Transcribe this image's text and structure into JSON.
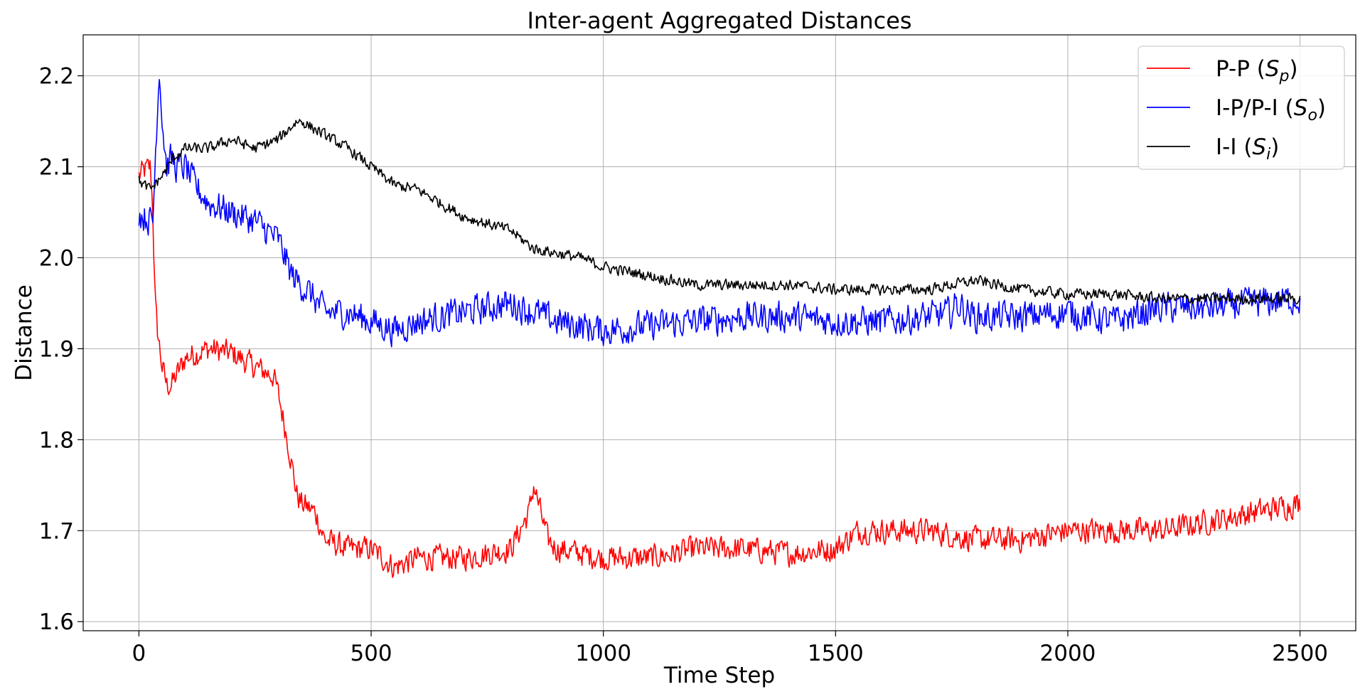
{
  "chart_data": {
    "type": "line",
    "title": "Inter-agent Aggregated Distances",
    "xlabel": "Time Step",
    "ylabel": "Distance",
    "xlim": [
      -120,
      2620
    ],
    "ylim": [
      1.59,
      2.245
    ],
    "xticks": [
      0,
      500,
      1000,
      1500,
      2000,
      2500
    ],
    "yticks": [
      1.6,
      1.7,
      1.8,
      1.9,
      2.0,
      2.1,
      2.2
    ],
    "ytick_labels": [
      "1.6",
      "1.7",
      "1.8",
      "1.9",
      "2.0",
      "2.1",
      "2.2"
    ],
    "grid": true,
    "legend_position": "top-right",
    "series": [
      {
        "name": "P-P (Sp)",
        "label_main": "P-P (",
        "label_var": "S",
        "label_sub": "p",
        "label_end": ")",
        "color": "#ff0000",
        "noise": 0.018,
        "x": [
          0,
          10,
          25,
          30,
          35,
          40,
          50,
          60,
          70,
          80,
          100,
          150,
          200,
          250,
          290,
          300,
          320,
          340,
          350,
          380,
          400,
          450,
          500,
          550,
          600,
          700,
          800,
          840,
          850,
          880,
          900,
          1000,
          1100,
          1200,
          1300,
          1400,
          1500,
          1550,
          1600,
          1700,
          1800,
          1900,
          2000,
          2100,
          2200,
          2300,
          2400,
          2500
        ],
        "y": [
          2.09,
          2.095,
          2.1,
          2.05,
          1.95,
          1.92,
          1.88,
          1.86,
          1.86,
          1.87,
          1.89,
          1.9,
          1.895,
          1.88,
          1.87,
          1.85,
          1.8,
          1.74,
          1.73,
          1.72,
          1.69,
          1.68,
          1.68,
          1.66,
          1.67,
          1.67,
          1.68,
          1.72,
          1.75,
          1.69,
          1.68,
          1.67,
          1.67,
          1.68,
          1.68,
          1.675,
          1.68,
          1.7,
          1.7,
          1.7,
          1.69,
          1.69,
          1.7,
          1.7,
          1.7,
          1.71,
          1.72,
          1.73
        ]
      },
      {
        "name": "I-P/P-I (So)",
        "label_main": "I-P/P-I (",
        "label_var": "S",
        "label_sub": "o",
        "label_end": ")",
        "color": "#0000ff",
        "noise": 0.022,
        "x": [
          0,
          10,
          30,
          40,
          45,
          50,
          60,
          70,
          80,
          90,
          100,
          120,
          150,
          200,
          250,
          300,
          330,
          370,
          400,
          450,
          500,
          550,
          600,
          700,
          800,
          900,
          1000,
          1100,
          1200,
          1300,
          1400,
          1500,
          1600,
          1700,
          1750,
          1760,
          1800,
          1900,
          2000,
          2100,
          2200,
          2300,
          2400,
          2500
        ],
        "y": [
          2.05,
          2.045,
          2.04,
          2.17,
          2.21,
          2.15,
          2.1,
          2.11,
          2.1,
          2.1,
          2.1,
          2.08,
          2.06,
          2.05,
          2.04,
          2.02,
          1.98,
          1.96,
          1.94,
          1.94,
          1.93,
          1.92,
          1.93,
          1.94,
          1.95,
          1.93,
          1.92,
          1.925,
          1.93,
          1.935,
          1.935,
          1.93,
          1.93,
          1.935,
          1.94,
          1.95,
          1.935,
          1.935,
          1.94,
          1.93,
          1.945,
          1.945,
          1.95,
          1.955
        ]
      },
      {
        "name": "I-I (Si)",
        "label_main": "I-I (",
        "label_var": "S",
        "label_sub": "i",
        "label_end": ")",
        "color": "#000000",
        "noise": 0.008,
        "x": [
          0,
          10,
          25,
          50,
          75,
          100,
          150,
          200,
          250,
          300,
          340,
          350,
          400,
          450,
          500,
          550,
          600,
          650,
          700,
          800,
          850,
          900,
          950,
          1000,
          1050,
          1100,
          1200,
          1300,
          1400,
          1500,
          1600,
          1700,
          1800,
          1900,
          2000,
          2100,
          2200,
          2300,
          2400,
          2500
        ],
        "y": [
          2.085,
          2.08,
          2.075,
          2.09,
          2.11,
          2.12,
          2.12,
          2.13,
          2.12,
          2.13,
          2.15,
          2.15,
          2.135,
          2.12,
          2.1,
          2.08,
          2.075,
          2.06,
          2.045,
          2.03,
          2.01,
          2.005,
          2.0,
          1.99,
          1.985,
          1.98,
          1.97,
          1.97,
          1.97,
          1.965,
          1.965,
          1.965,
          1.975,
          1.965,
          1.96,
          1.96,
          1.955,
          1.955,
          1.955,
          1.955
        ]
      }
    ]
  }
}
